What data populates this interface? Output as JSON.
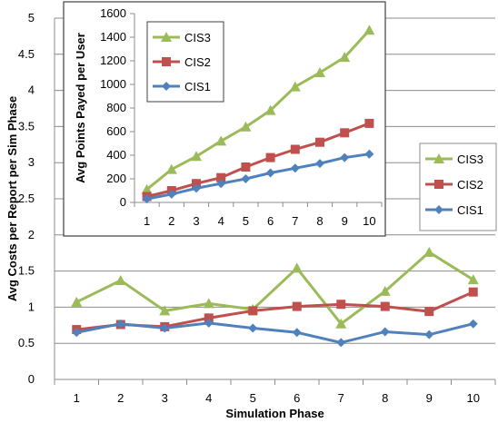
{
  "chart_data": [
    {
      "type": "line",
      "name": "main",
      "x": [
        1,
        2,
        3,
        4,
        5,
        6,
        7,
        8,
        9,
        10
      ],
      "xlabel": "Simulation  Phase",
      "ylabel": "Avg Costs per Report per Sim Phase",
      "ylim": [
        0,
        5
      ],
      "yticks": [
        "0",
        "0.5",
        "1",
        "1.5",
        "2",
        "2.5",
        "3",
        "3.5",
        "4",
        "4.5",
        "5"
      ],
      "xticks": [
        "1",
        "2",
        "3",
        "4",
        "5",
        "6",
        "7",
        "8",
        "9",
        "10"
      ],
      "grid": true,
      "legend": "right",
      "series": [
        {
          "name": "CIS3",
          "color": "#9BBB59",
          "marker": "triangle",
          "values": [
            1.07,
            1.37,
            0.95,
            1.05,
            0.97,
            1.54,
            0.77,
            1.22,
            1.76,
            1.38
          ]
        },
        {
          "name": "CIS2",
          "color": "#C0504D",
          "marker": "square",
          "values": [
            0.69,
            0.76,
            0.73,
            0.85,
            0.95,
            1.01,
            1.04,
            1.01,
            0.94,
            1.21
          ]
        },
        {
          "name": "CIS1",
          "color": "#4F81BD",
          "marker": "diamond",
          "values": [
            0.65,
            0.77,
            0.71,
            0.78,
            0.71,
            0.65,
            0.51,
            0.66,
            0.62,
            0.77
          ]
        }
      ]
    },
    {
      "type": "line",
      "name": "inset",
      "x": [
        1,
        2,
        3,
        4,
        5,
        6,
        7,
        8,
        9,
        10
      ],
      "xlabel": "",
      "ylabel": "Avg Points Payed per User",
      "ylim": [
        0,
        1600
      ],
      "yticks": [
        "0",
        "200",
        "400",
        "600",
        "800",
        "1000",
        "1200",
        "1400",
        "1600"
      ],
      "xticks": [
        "1",
        "2",
        "3",
        "4",
        "5",
        "6",
        "7",
        "8",
        "9",
        "10"
      ],
      "grid": false,
      "legend": "top-left",
      "series": [
        {
          "name": "CIS3",
          "color": "#9BBB59",
          "marker": "triangle",
          "values": [
            110,
            280,
            390,
            520,
            640,
            780,
            980,
            1100,
            1230,
            1460
          ]
        },
        {
          "name": "CIS2",
          "color": "#C0504D",
          "marker": "square",
          "values": [
            50,
            100,
            160,
            210,
            300,
            380,
            450,
            510,
            590,
            670
          ]
        },
        {
          "name": "CIS1",
          "color": "#4F81BD",
          "marker": "diamond",
          "values": [
            30,
            70,
            120,
            160,
            200,
            250,
            290,
            330,
            380,
            410
          ]
        }
      ]
    }
  ]
}
